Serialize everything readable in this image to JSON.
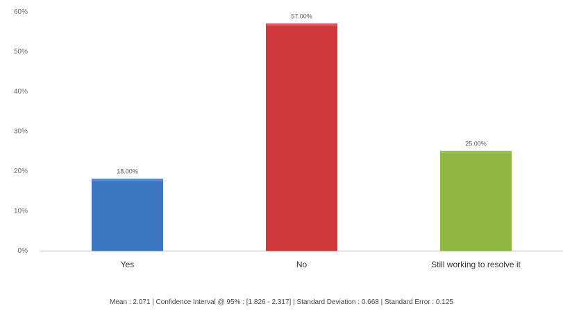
{
  "chart_data": {
    "type": "bar",
    "categories": [
      "Yes",
      "No",
      "Still working to resolve it"
    ],
    "values": [
      18,
      57,
      25
    ],
    "data_labels": [
      "18.00%",
      "57.00%",
      "25.00%"
    ],
    "colors": [
      "#3d76c0",
      "#d0393b",
      "#8fb641"
    ],
    "ylim": [
      0,
      60
    ],
    "yticks": [
      {
        "value": 0,
        "label": "0%"
      },
      {
        "value": 10,
        "label": "10%"
      },
      {
        "value": 20,
        "label": "20%"
      },
      {
        "value": 30,
        "label": "30%"
      },
      {
        "value": 40,
        "label": "40%"
      },
      {
        "value": 50,
        "label": "50%"
      },
      {
        "value": 60,
        "label": "60%"
      }
    ],
    "grid": false,
    "legend": "none",
    "title": "",
    "xlabel": "",
    "ylabel": ""
  },
  "stats_line": "Mean : 2.071   |   Confidence Interval @ 95% : [1.826 - 2.317]   |   Standard Deviation : 0.668   |   Standard Error : 0.125"
}
